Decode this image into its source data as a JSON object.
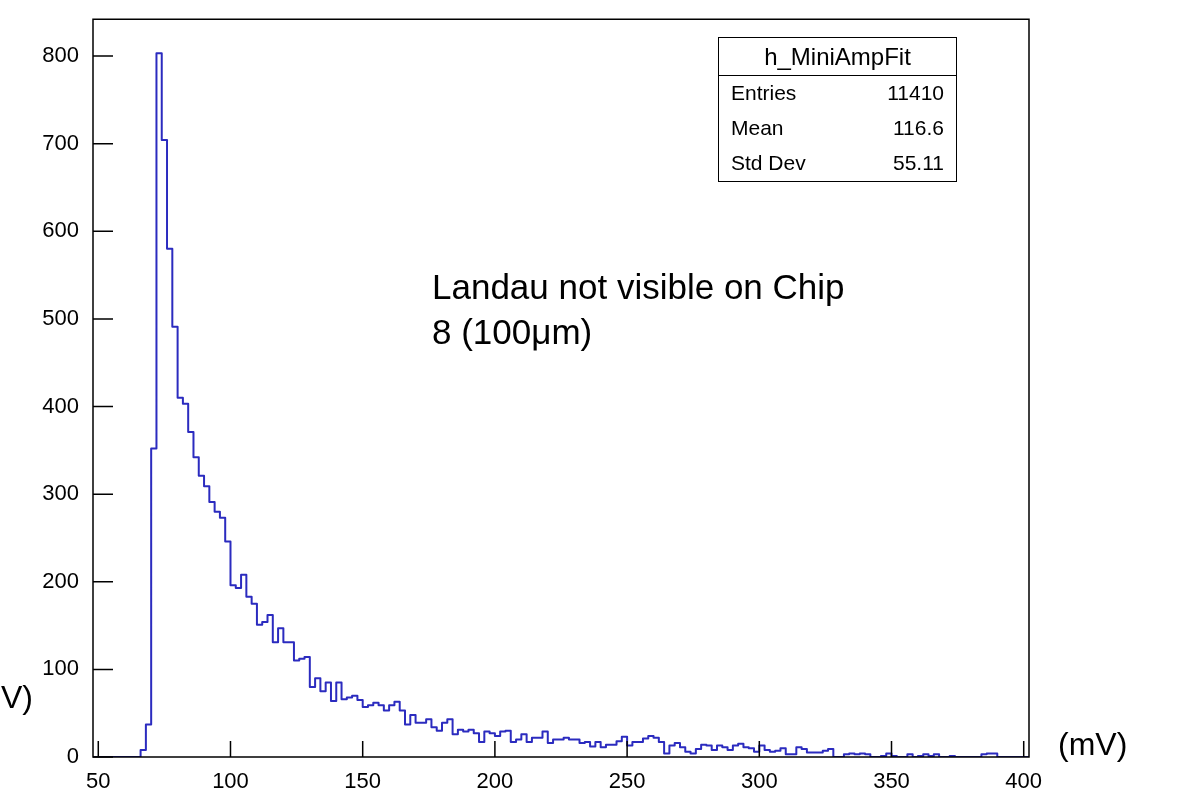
{
  "chart_data": {
    "type": "histogram",
    "xlabel": "(mV)",
    "annotations": [
      "h_MiniAmpFit",
      "Entries",
      "11410",
      "Mean",
      "116.6",
      "Std Dev",
      "55.11",
      "Landau not visible on Chip 8 (100μm)",
      "V)"
    ],
    "color": "#2b2bbf",
    "bins": [
      48,
      50,
      52,
      54,
      56,
      58,
      60,
      62,
      64,
      66,
      68,
      70,
      72,
      74,
      76,
      78,
      80,
      82,
      84,
      86,
      88,
      90,
      92,
      94,
      96,
      98,
      100,
      102,
      104,
      106,
      108,
      110,
      112,
      114,
      116,
      118,
      120,
      122,
      124,
      126,
      128,
      130,
      132,
      134,
      136,
      138,
      140,
      142,
      144,
      146,
      148,
      150,
      152,
      154,
      156,
      158,
      160,
      162,
      164,
      166,
      168,
      170,
      172,
      174,
      176,
      178,
      180,
      182,
      184,
      186,
      188,
      190,
      192,
      194,
      196,
      198,
      200,
      202,
      204,
      206,
      208,
      210,
      212,
      214,
      216,
      218,
      220,
      222,
      224,
      226,
      228,
      230,
      232,
      234,
      236,
      238,
      240,
      242,
      244,
      246,
      248,
      250,
      252,
      254,
      256,
      258,
      260,
      262,
      264,
      266,
      268,
      270,
      272,
      274,
      276,
      278,
      280,
      282,
      284,
      286,
      288,
      290,
      292,
      294,
      296,
      298,
      300,
      302,
      304,
      306,
      308,
      310,
      312,
      314,
      316,
      318,
      320,
      322,
      324,
      326,
      328,
      330,
      332,
      334,
      336,
      338,
      340,
      342,
      344,
      346,
      348,
      350,
      352,
      354,
      356,
      358,
      360,
      362,
      364,
      366,
      368,
      370,
      372,
      374,
      376,
      378,
      380,
      382,
      384,
      386,
      388,
      390,
      392,
      394,
      396,
      398,
      400,
      402
    ],
    "values": [
      0,
      0,
      0,
      0,
      0,
      0,
      0,
      0,
      0,
      8,
      37,
      352,
      803,
      704,
      580,
      491,
      410,
      403,
      371,
      342,
      321,
      309,
      291,
      280,
      273,
      246,
      196,
      193,
      208,
      183,
      175,
      151,
      154,
      162,
      131,
      147,
      131,
      131,
      110,
      112,
      114,
      80,
      90,
      75,
      85,
      64,
      85,
      66,
      68,
      70,
      65,
      57,
      59,
      62,
      59,
      53,
      59,
      63,
      53,
      37,
      48,
      39,
      39,
      43,
      34,
      30,
      39,
      43,
      26,
      31,
      29,
      31,
      27,
      17,
      29,
      27,
      24,
      29,
      30,
      17,
      20,
      26,
      17,
      22,
      22,
      29,
      16,
      20,
      20,
      22,
      20,
      20,
      16,
      17,
      12,
      17,
      11,
      14,
      14,
      18,
      23,
      13,
      17,
      17,
      21,
      24,
      22,
      17,
      4,
      13,
      16,
      11,
      6,
      4,
      9,
      14,
      13,
      8,
      13,
      11,
      8,
      13,
      15,
      11,
      10,
      6,
      13,
      8,
      6,
      7,
      10,
      3,
      3,
      11,
      9,
      5,
      5,
      5,
      7,
      9,
      0,
      0,
      3,
      4,
      3,
      4,
      3,
      0,
      0,
      1,
      4,
      1,
      0,
      0,
      3,
      0,
      1,
      3,
      1,
      3,
      0,
      0,
      1,
      0,
      0,
      0,
      0,
      0,
      3,
      4,
      4,
      0,
      0,
      0,
      0,
      0,
      0
    ],
    "xlim": [
      48,
      402
    ],
    "ylim": [
      0,
      842
    ],
    "xticks": [
      50,
      100,
      150,
      200,
      250,
      300,
      350,
      400
    ],
    "yticks": [
      0,
      100,
      200,
      300,
      400,
      500,
      600,
      700,
      800
    ]
  }
}
